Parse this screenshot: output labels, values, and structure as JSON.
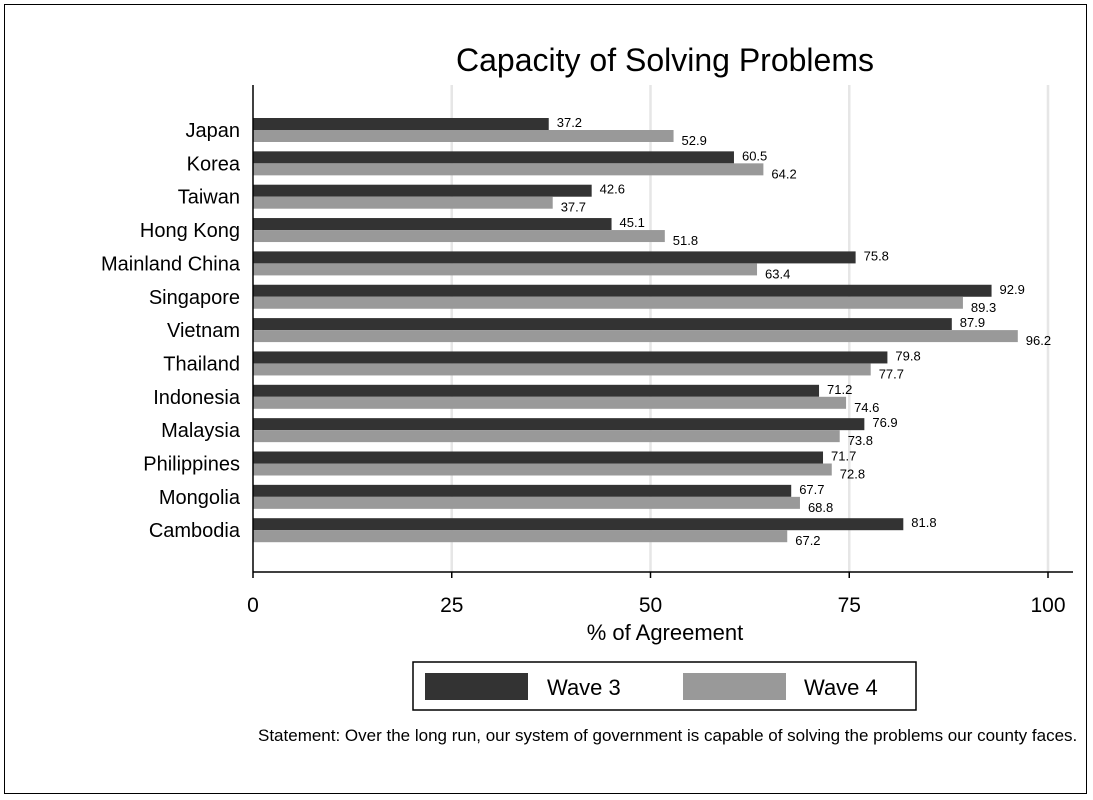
{
  "chart_data": {
    "type": "bar",
    "orientation": "horizontal",
    "title": "Capacity of Solving Problems",
    "xlabel": "% of Agreement",
    "ylabel": "",
    "xlim": [
      0,
      100
    ],
    "xticks": [
      "0",
      "25",
      "50",
      "75",
      "100"
    ],
    "grid": true,
    "legend_position": "bottom",
    "categories": [
      "Japan",
      "Korea",
      "Taiwan",
      "Hong Kong",
      "Mainland China",
      "Singapore",
      "Vietnam",
      "Thailand",
      "Indonesia",
      "Malaysia",
      "Philippines",
      "Mongolia",
      "Cambodia"
    ],
    "series": [
      {
        "name": "Wave 3",
        "color": "#333333",
        "values": [
          37.2,
          60.5,
          42.6,
          45.1,
          75.8,
          92.9,
          87.9,
          79.8,
          71.2,
          76.9,
          71.7,
          67.7,
          81.8
        ]
      },
      {
        "name": "Wave 4",
        "color": "#999999",
        "values": [
          52.9,
          64.2,
          37.7,
          51.8,
          63.4,
          89.3,
          96.2,
          77.7,
          74.6,
          73.8,
          72.8,
          68.8,
          67.2
        ]
      }
    ]
  },
  "note": "Statement: Over the long run, our system of government is capable of solving the problems our county faces."
}
